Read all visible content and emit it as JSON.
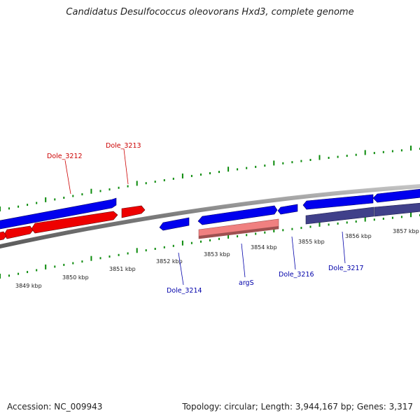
{
  "title": "Candidatus Desulfococcus oleovorans Hxd3, complete genome",
  "footer": {
    "accession": "Accession: NC_009943",
    "summary": "Topology: circular; Length: 3,944,167 bp; Genes: 3,317"
  },
  "colors": {
    "forward_gene": "#0000ee",
    "reverse_gene": "#ee0000",
    "rna_gene": "#f08080",
    "other_gene": "#40408a",
    "backbone": "#888888",
    "tick": "#0a8a0a",
    "label_red": "#cc0000",
    "label_blue": "#0000aa"
  },
  "ruler_labels": [
    "3849 kbp",
    "3850 kbp",
    "3851 kbp",
    "3852 kbp",
    "3853 kbp",
    "3854 kbp",
    "3855 kbp",
    "3856 kbp",
    "3857 kbp"
  ],
  "gene_labels": [
    {
      "text": "Dole_3212",
      "color": "red"
    },
    {
      "text": "Dole_3213",
      "color": "red"
    },
    {
      "text": "Dole_3214",
      "color": "blue"
    },
    {
      "text": "argS",
      "color": "blue"
    },
    {
      "text": "Dole_3216",
      "color": "blue"
    },
    {
      "text": "Dole_3217",
      "color": "blue"
    }
  ]
}
